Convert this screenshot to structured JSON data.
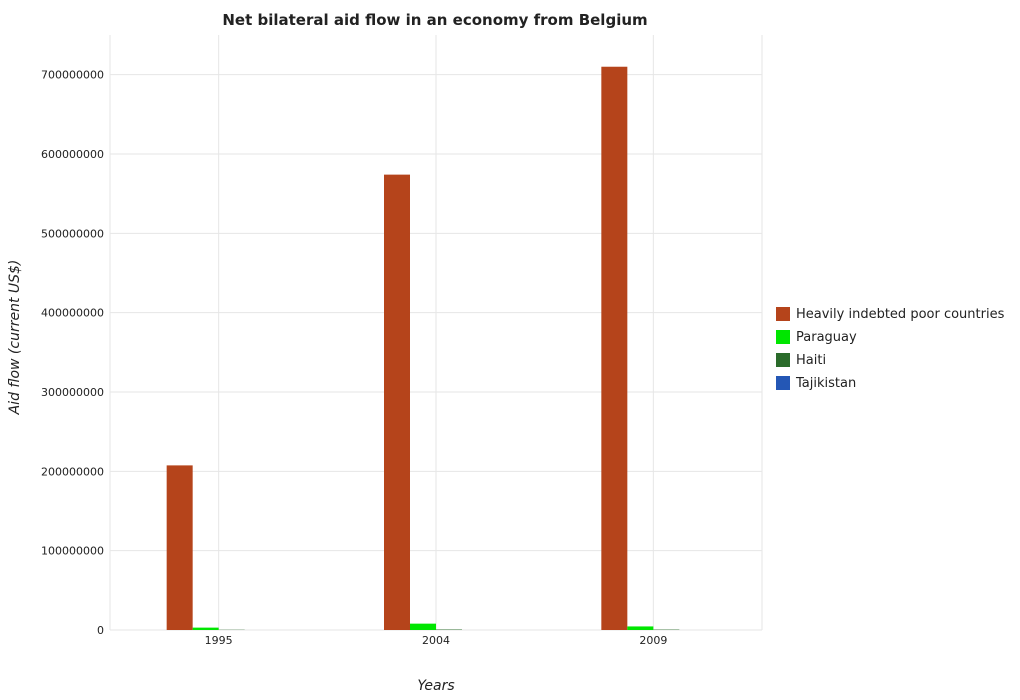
{
  "chart_data": {
    "type": "bar",
    "title": "Net bilateral aid flow in an economy from Belgium",
    "xlabel": "Years",
    "ylabel": "Aid flow (current US$)",
    "categories": [
      "1995",
      "2004",
      "2009"
    ],
    "ylim": [
      0,
      750000000
    ],
    "yticks": [
      0,
      100000000,
      200000000,
      300000000,
      400000000,
      500000000,
      600000000,
      700000000
    ],
    "ytick_labels": [
      "0",
      "100000000",
      "200000000",
      "300000000",
      "400000000",
      "500000000",
      "600000000",
      "700000000"
    ],
    "series": [
      {
        "name": "Heavily indebted poor countries",
        "color": "#b5441b",
        "values": [
          207500000,
          574000000,
          710000000
        ]
      },
      {
        "name": "Paraguay",
        "color": "#00e600",
        "values": [
          3000000,
          8000000,
          4500000
        ]
      },
      {
        "name": "Haiti",
        "color": "#2a6b2a",
        "values": [
          300000,
          600000,
          500000
        ]
      },
      {
        "name": "Tajikistan",
        "color": "#2457b5",
        "values": [
          0,
          0,
          0
        ]
      }
    ],
    "grid": true,
    "legend_position": "right"
  }
}
